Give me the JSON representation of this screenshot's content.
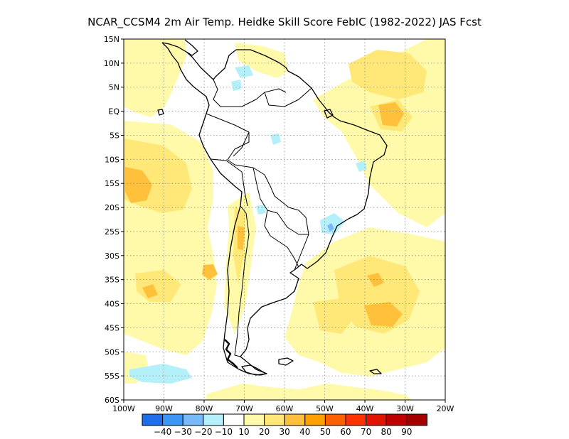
{
  "title": "NCAR_CCSM4  2m Air Temp. Heidke Skill Score FebIC (1982-2022) JAS Fcst",
  "map": {
    "lon_range": [
      -100,
      -20
    ],
    "lat_range": [
      -60,
      15
    ],
    "lat_ticks": [
      {
        "value": 15,
        "label": "15N"
      },
      {
        "value": 10,
        "label": "10N"
      },
      {
        "value": 5,
        "label": "5N"
      },
      {
        "value": 0,
        "label": "EQ"
      },
      {
        "value": -5,
        "label": "5S"
      },
      {
        "value": -10,
        "label": "10S"
      },
      {
        "value": -15,
        "label": "15S"
      },
      {
        "value": -20,
        "label": "20S"
      },
      {
        "value": -25,
        "label": "25S"
      },
      {
        "value": -30,
        "label": "30S"
      },
      {
        "value": -35,
        "label": "35S"
      },
      {
        "value": -40,
        "label": "40S"
      },
      {
        "value": -45,
        "label": "45S"
      },
      {
        "value": -50,
        "label": "50S"
      },
      {
        "value": -55,
        "label": "55S"
      },
      {
        "value": -60,
        "label": "60S"
      }
    ],
    "lon_ticks": [
      {
        "value": -100,
        "label": "100W"
      },
      {
        "value": -90,
        "label": "90W"
      },
      {
        "value": -80,
        "label": "80W"
      },
      {
        "value": -70,
        "label": "70W"
      },
      {
        "value": -60,
        "label": "60W"
      },
      {
        "value": -50,
        "label": "50W"
      },
      {
        "value": -40,
        "label": "40W"
      },
      {
        "value": -30,
        "label": "30W"
      },
      {
        "value": -20,
        "label": "20W"
      }
    ],
    "grid": "dotted"
  },
  "colorbar": {
    "labels": [
      "-40",
      "-30",
      "-20",
      "-10",
      "10",
      "20",
      "30",
      "40",
      "50",
      "60",
      "70",
      "80",
      "90"
    ],
    "colors": [
      "#1e6eeb",
      "#3c96f5",
      "#78b9fa",
      "#b4f0fa",
      "#ffffff",
      "#fffaaa",
      "#ffe878",
      "#ffc03c",
      "#ffa000",
      "#ff6000",
      "#ff3200",
      "#e11400",
      "#c00000",
      "#a50000"
    ]
  },
  "shading": {
    "palette": {
      "yellow_light": "#fffaaa",
      "yellow": "#ffe878",
      "orange_light": "#ffc03c",
      "orange": "#ffa000",
      "cyan_light": "#b4f0fa",
      "blue_light": "#78b9fa",
      "land_outline": "#000000"
    }
  }
}
